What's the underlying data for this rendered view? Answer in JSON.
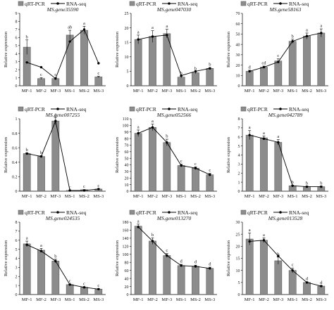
{
  "legend": {
    "bar_label": "qRT-PCR",
    "line_label": "RNA-seq"
  },
  "chart_data": [
    {
      "type": "bar",
      "title": "MS.gene35590",
      "ylabel": "Relative expression",
      "categories": [
        "MF-1",
        "MF-2",
        "MF-3",
        "MS-1",
        "MS-2",
        "MS-3"
      ],
      "ylim": [
        0,
        9
      ],
      "yticks": [
        0,
        1,
        2,
        3,
        4,
        5,
        6,
        7,
        8,
        9
      ],
      "series": [
        {
          "name": "qRT-PCR",
          "kind": "bar",
          "values": [
            4.8,
            0.9,
            0.9,
            6.3,
            6.9,
            1.1
          ],
          "errors": [
            0.9,
            0.1,
            0.1,
            0.6,
            0.5,
            0.1
          ],
          "letters": [
            "b",
            "c",
            "c",
            "ab",
            "a",
            "c"
          ]
        },
        {
          "name": "RNA-seq",
          "kind": "line",
          "values": [
            2.9,
            2.3,
            0.9,
            5.5,
            7.0,
            2.8
          ]
        }
      ]
    },
    {
      "type": "bar",
      "title": "MS.gene047030",
      "ylabel": "Relative expression",
      "categories": [
        "MF-1",
        "MF-2",
        "MF-3",
        "MS-1",
        "MS-2",
        "MS-3"
      ],
      "ylim": [
        0,
        25
      ],
      "yticks": [
        0,
        5,
        10,
        15,
        20,
        25
      ],
      "series": [
        {
          "name": "qRT-PCR",
          "kind": "bar",
          "values": [
            16.0,
            17.0,
            18.0,
            3.0,
            4.5,
            6.0
          ],
          "errors": [
            1.5,
            2.0,
            1.5,
            0.3,
            0.3,
            0.3
          ],
          "letters": [
            "a",
            "a",
            "a",
            "b",
            "b",
            "b"
          ]
        },
        {
          "name": "RNA-seq",
          "kind": "line",
          "values": [
            16.0,
            17.0,
            17.5,
            3.5,
            5.0,
            6.0
          ]
        }
      ]
    },
    {
      "type": "bar",
      "title": "MS.gene58163",
      "ylabel": "Relative expression",
      "categories": [
        "MF-1",
        "MF-2",
        "MF-3",
        "MS-1",
        "MS-2",
        "MS-3"
      ],
      "ylim": [
        0,
        70
      ],
      "yticks": [
        0,
        10,
        20,
        30,
        40,
        50,
        60,
        70
      ],
      "series": [
        {
          "name": "qRT-PCR",
          "kind": "bar",
          "values": [
            14.0,
            18.0,
            24.0,
            43.0,
            48.0,
            51.0
          ],
          "errors": [
            1.0,
            1.0,
            2.0,
            2.0,
            3.0,
            4.0
          ],
          "letters": [
            "d",
            "cd",
            "c",
            "b",
            "a",
            "a"
          ]
        },
        {
          "name": "RNA-seq",
          "kind": "line",
          "values": [
            14.0,
            18.0,
            23.0,
            43.0,
            48.0,
            51.0
          ]
        }
      ]
    },
    {
      "type": "bar",
      "title": "MS.gene007255",
      "ylabel": "Relative expression",
      "categories": [
        "MF-1",
        "MF-2",
        "MF-3",
        "MS-1",
        "MS-2",
        "MS-3"
      ],
      "ylim": [
        0,
        1
      ],
      "yticks": [
        0,
        0.2,
        0.4,
        0.6,
        0.8,
        1
      ],
      "series": [
        {
          "name": "qRT-PCR",
          "kind": "bar",
          "values": [
            0.52,
            0.48,
            0.97,
            0.01,
            0.02,
            0.03
          ],
          "errors": [
            0.01,
            0.01,
            0.05,
            0.002,
            0.003,
            0.004
          ],
          "letters": [
            "b",
            "b",
            "a",
            "c",
            "c",
            "c"
          ]
        },
        {
          "name": "RNA-seq",
          "kind": "line",
          "values": [
            0.52,
            0.48,
            0.97,
            0.01,
            0.01,
            0.03
          ]
        }
      ]
    },
    {
      "type": "bar",
      "title": "MS.gene052566",
      "ylabel": "Relative expression",
      "categories": [
        "MF-1",
        "MF-2",
        "MF-3",
        "MS-1",
        "MS-2",
        "MS-3"
      ],
      "ylim": [
        0,
        110
      ],
      "yticks": [
        0,
        10,
        20,
        30,
        40,
        50,
        60,
        70,
        80,
        90,
        100,
        110
      ],
      "series": [
        {
          "name": "qRT-PCR",
          "kind": "bar",
          "values": [
            88,
            97,
            74,
            39,
            35,
            25
          ],
          "errors": [
            5,
            5,
            5,
            2,
            2,
            2
          ],
          "letters": [
            "a",
            "a",
            "b",
            "c",
            "c",
            "c"
          ]
        },
        {
          "name": "RNA-seq",
          "kind": "line",
          "values": [
            88,
            97,
            74,
            39,
            35,
            25
          ]
        }
      ]
    },
    {
      "type": "bar",
      "title": "MS.gene042789",
      "ylabel": "Relative expression",
      "categories": [
        "MF-1",
        "MF-2",
        "MF-3",
        "MS-1",
        "MS-2",
        "MS-3"
      ],
      "ylim": [
        0,
        8
      ],
      "yticks": [
        0,
        1,
        2,
        3,
        4,
        5,
        6,
        7,
        8
      ],
      "series": [
        {
          "name": "qRT-PCR",
          "kind": "bar",
          "values": [
            6.2,
            5.9,
            5.4,
            0.6,
            0.5,
            0.5
          ],
          "errors": [
            0.5,
            0.2,
            0.3,
            0.05,
            0.05,
            0.05
          ],
          "letters": [
            "a",
            "a",
            "a",
            "b",
            "b",
            "b"
          ]
        },
        {
          "name": "RNA-seq",
          "kind": "line",
          "values": [
            6.2,
            5.8,
            5.4,
            0.6,
            0.5,
            0.5
          ]
        }
      ]
    },
    {
      "type": "bar",
      "title": "MS.gene024535",
      "ylabel": "Relative expression",
      "categories": [
        "MF-1",
        "MF-2",
        "MF-3",
        "MS-1",
        "MS-2",
        "MS-3"
      ],
      "ylim": [
        0,
        8
      ],
      "yticks": [
        0,
        1,
        2,
        3,
        4,
        5,
        6,
        7,
        8
      ],
      "series": [
        {
          "name": "qRT-PCR",
          "kind": "bar",
          "values": [
            5.6,
            4.9,
            3.7,
            1.1,
            0.8,
            0.6
          ],
          "errors": [
            0.3,
            0.2,
            0.2,
            0.05,
            0.05,
            0.05
          ],
          "letters": [
            "a",
            "a",
            "b",
            "c",
            "c",
            "c"
          ]
        },
        {
          "name": "RNA-seq",
          "kind": "line",
          "values": [
            5.5,
            4.8,
            3.7,
            1.1,
            0.8,
            0.6
          ]
        }
      ]
    },
    {
      "type": "bar",
      "title": "MS.gene013270",
      "ylabel": "Relative expression",
      "categories": [
        "MF-1",
        "MF-2",
        "MF-3",
        "MS-1",
        "MS-2",
        "MS-3"
      ],
      "ylim": [
        0,
        180
      ],
      "yticks": [
        0,
        20,
        40,
        60,
        80,
        100,
        120,
        140,
        160,
        180
      ],
      "series": [
        {
          "name": "qRT-PCR",
          "kind": "bar",
          "values": [
            170,
            133,
            97,
            72,
            70,
            65
          ],
          "errors": [
            5,
            8,
            5,
            3,
            3,
            3
          ],
          "letters": [
            "a",
            "b",
            "c",
            "d",
            "d",
            "d"
          ]
        },
        {
          "name": "RNA-seq",
          "kind": "line",
          "values": [
            168,
            133,
            97,
            72,
            70,
            65
          ]
        }
      ]
    },
    {
      "type": "bar",
      "title": "MS.gene013528",
      "ylabel": "Relative expression",
      "categories": [
        "MF-1",
        "MF-2",
        "MF-3",
        "MS-1",
        "MS-2",
        "MS-3"
      ],
      "ylim": [
        0,
        30
      ],
      "yticks": [
        0,
        5,
        10,
        15,
        20,
        25,
        30
      ],
      "series": [
        {
          "name": "qRT-PCR",
          "kind": "bar",
          "values": [
            23,
            22.5,
            14,
            10,
            5,
            3.5
          ],
          "errors": [
            2.5,
            1.0,
            1.5,
            1.0,
            0.3,
            0.2
          ],
          "letters": [
            "a",
            "a",
            "b",
            "c",
            "d",
            "d"
          ]
        },
        {
          "name": "RNA-seq",
          "kind": "line",
          "values": [
            22,
            22.5,
            16,
            10,
            5,
            3.5
          ]
        }
      ]
    }
  ]
}
